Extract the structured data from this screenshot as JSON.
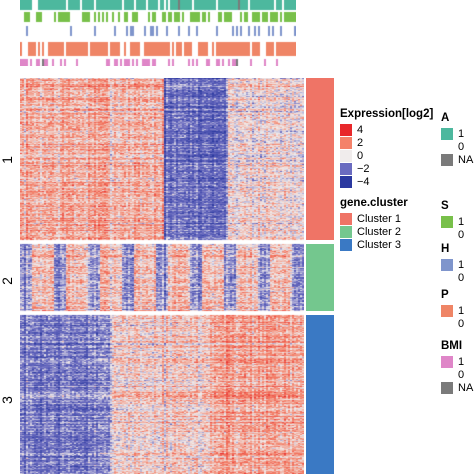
{
  "chart_data": {
    "type": "heatmap",
    "row_clusters": [
      {
        "label": "1",
        "annotation": "Cluster 1"
      },
      {
        "label": "2",
        "annotation": "Cluster 2"
      },
      {
        "label": "3",
        "annotation": "Cluster 3"
      }
    ],
    "column_annotations": [
      "A",
      "S",
      "H",
      "P",
      "BMI"
    ],
    "legends": {
      "expression": {
        "title": "Expression[log2]",
        "ticks": [
          "4",
          "2",
          "0",
          "−2",
          "−4"
        ],
        "colors": [
          "#e8282b",
          "#f4826a",
          "#f0ecec",
          "#6a6bc0",
          "#2b39a0"
        ]
      },
      "gene_cluster": {
        "title": "gene.cluster",
        "items": [
          {
            "label": "Cluster 1",
            "color": "#ef7466"
          },
          {
            "label": "Cluster 2",
            "color": "#74c78e"
          },
          {
            "label": "Cluster 3",
            "color": "#3a79c4"
          }
        ]
      },
      "annotations": [
        {
          "title": "A",
          "items": [
            {
              "label": "1",
              "color": "#4db89e"
            },
            {
              "label": "0",
              "color": "#ffffff"
            },
            {
              "label": "NA",
              "color": "#7a7a7a"
            }
          ]
        },
        {
          "title": "S",
          "items": [
            {
              "label": "1",
              "color": "#78c04a"
            },
            {
              "label": "0",
              "color": "#ffffff"
            }
          ]
        },
        {
          "title": "H",
          "items": [
            {
              "label": "1",
              "color": "#7f95cc"
            },
            {
              "label": "0",
              "color": "#ffffff"
            }
          ]
        },
        {
          "title": "P",
          "items": [
            {
              "label": "1",
              "color": "#ef8566"
            },
            {
              "label": "0",
              "color": "#ffffff"
            }
          ]
        },
        {
          "title": "BMI",
          "items": [
            {
              "label": "1",
              "color": "#df86c8"
            },
            {
              "label": "0",
              "color": "#ffffff"
            },
            {
              "label": "NA",
              "color": "#7a7a7a"
            }
          ]
        }
      ]
    }
  }
}
